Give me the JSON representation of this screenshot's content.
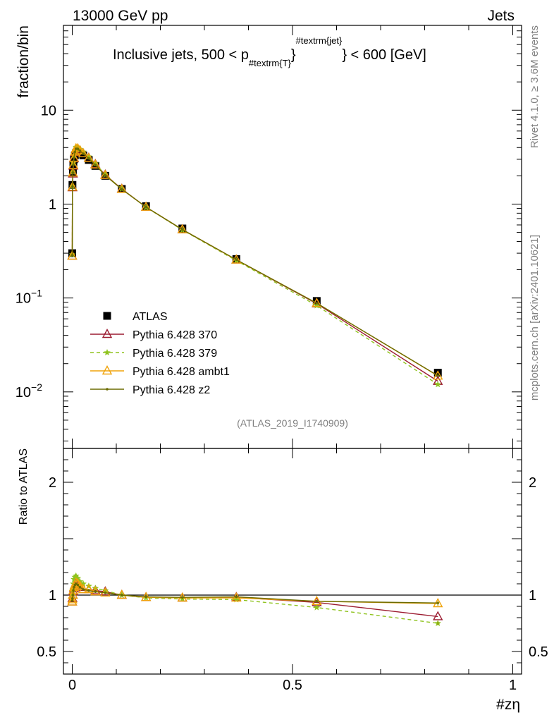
{
  "header": {
    "left_title": "13000 GeV pp",
    "right_title": "Jets"
  },
  "side_labels": {
    "rivet": "Rivet 4.1.0, ≥ 3.6M events",
    "url": "mcplots.cern.ch [arXiv:2401.10621]"
  },
  "chart_data": [
    {
      "type": "line",
      "title_parts": {
        "main": "Inclusive jets, 500 < p",
        "sub": "#textrm{T}",
        "sup": "#textrm{jet}",
        "tail": "} < 600 [GeV]"
      },
      "ylabel": "fraction/bin",
      "yscale": "log",
      "ylim": [
        0.0025,
        80
      ],
      "xlim": [
        -0.02,
        1.02
      ],
      "y_ticks": [
        {
          "value": 10,
          "label": "10"
        },
        {
          "value": 1,
          "label": "1"
        },
        {
          "value": 0.1,
          "label": "10",
          "exp": "−1"
        },
        {
          "value": 0.01,
          "label": "10",
          "exp": "−2"
        }
      ],
      "watermark": "(ATLAS_2019_I1740909)",
      "x": [
        0.0,
        0.0005,
        0.0015,
        0.0025,
        0.004,
        0.006,
        0.0085,
        0.0125,
        0.0175,
        0.025,
        0.0375,
        0.0525,
        0.075,
        0.1125,
        0.1675,
        0.25,
        0.3725,
        0.555,
        0.83
      ],
      "series": [
        {
          "name": "ATLAS",
          "color": "#000000",
          "marker": "square",
          "dash": "none",
          "values": [
            0.3,
            1.6,
            2.2,
            2.6,
            3.0,
            3.3,
            3.5,
            3.55,
            3.45,
            3.3,
            2.95,
            2.55,
            2.0,
            1.45,
            0.95,
            0.55,
            0.26,
            0.093,
            0.016
          ]
        },
        {
          "name": "Pythia 6.428 370",
          "color": "#9b1b30",
          "marker": "triangle",
          "dash": "none",
          "values": [
            0.28,
            1.5,
            2.1,
            2.55,
            3.05,
            3.55,
            3.85,
            3.85,
            3.7,
            3.45,
            3.1,
            2.65,
            2.05,
            1.45,
            0.93,
            0.535,
            0.255,
            0.087,
            0.013
          ]
        },
        {
          "name": "Pythia 6.428 379",
          "color": "#8fc31f",
          "marker": "star",
          "dash": "5,4",
          "values": [
            0.29,
            1.55,
            2.2,
            2.75,
            3.3,
            3.75,
            4.05,
            4.05,
            3.85,
            3.6,
            3.2,
            2.7,
            2.05,
            1.45,
            0.925,
            0.53,
            0.25,
            0.083,
            0.012
          ]
        },
        {
          "name": "Pythia 6.428 ambt1",
          "color": "#f0a30a",
          "marker": "triangle",
          "dash": "none",
          "values": [
            0.28,
            1.52,
            2.15,
            2.6,
            3.1,
            3.6,
            3.9,
            3.9,
            3.72,
            3.45,
            3.08,
            2.62,
            2.03,
            1.44,
            0.93,
            0.535,
            0.255,
            0.088,
            0.0148
          ]
        },
        {
          "name": "Pythia 6.428 z2",
          "color": "#6b6b00",
          "marker": "dot",
          "dash": "none",
          "values": [
            0.285,
            1.53,
            2.16,
            2.62,
            3.12,
            3.6,
            3.88,
            3.88,
            3.7,
            3.44,
            3.07,
            2.61,
            2.02,
            1.44,
            0.93,
            0.535,
            0.256,
            0.088,
            0.0149
          ]
        }
      ]
    },
    {
      "type": "line",
      "ylabel": "Ratio to ATLAS",
      "ylim": [
        0.3,
        2.3
      ],
      "xlim": [
        -0.02,
        1.02
      ],
      "y_ticks": [
        {
          "value": 2,
          "label": "2"
        },
        {
          "value": 1,
          "label": "1"
        },
        {
          "value": 0.5,
          "label": "0.5"
        }
      ],
      "x_ticks": [
        {
          "value": 0,
          "label": "0"
        },
        {
          "value": 0.5,
          "label": "0.5"
        },
        {
          "value": 1,
          "label": "1"
        }
      ],
      "xlabel": "#zη",
      "x": [
        0.0,
        0.0005,
        0.0015,
        0.0025,
        0.004,
        0.006,
        0.0085,
        0.0125,
        0.0175,
        0.025,
        0.0375,
        0.0525,
        0.075,
        0.1125,
        0.1675,
        0.25,
        0.3725,
        0.555,
        0.83
      ],
      "series": [
        {
          "name": "Pythia 6.428 370",
          "color": "#9b1b30",
          "marker": "triangle",
          "dash": "none",
          "values": [
            0.94,
            0.97,
            1.0,
            1.03,
            1.06,
            1.08,
            1.1,
            1.09,
            1.07,
            1.05,
            1.05,
            1.04,
            1.03,
            1.0,
            0.98,
            0.975,
            0.98,
            0.935,
            0.81
          ]
        },
        {
          "name": "Pythia 6.428 379",
          "color": "#8fc31f",
          "marker": "star",
          "dash": "5,4",
          "values": [
            0.97,
            1.0,
            1.05,
            1.1,
            1.14,
            1.16,
            1.17,
            1.15,
            1.12,
            1.1,
            1.08,
            1.06,
            1.04,
            1.0,
            0.975,
            0.965,
            0.96,
            0.89,
            0.75
          ]
        },
        {
          "name": "Pythia 6.428 ambt1",
          "color": "#f0a30a",
          "marker": "triangle",
          "dash": "none",
          "values": [
            0.94,
            0.96,
            1.0,
            1.04,
            1.07,
            1.09,
            1.11,
            1.1,
            1.08,
            1.05,
            1.05,
            1.03,
            1.02,
            1.0,
            0.98,
            0.975,
            0.975,
            0.945,
            0.925
          ]
        },
        {
          "name": "Pythia 6.428 z2",
          "color": "#6b6b00",
          "marker": "dot",
          "dash": "none",
          "values": [
            0.95,
            0.97,
            1.0,
            1.04,
            1.07,
            1.09,
            1.1,
            1.09,
            1.07,
            1.05,
            1.04,
            1.03,
            1.02,
            1.0,
            0.985,
            0.98,
            0.985,
            0.945,
            0.93
          ]
        }
      ]
    }
  ]
}
